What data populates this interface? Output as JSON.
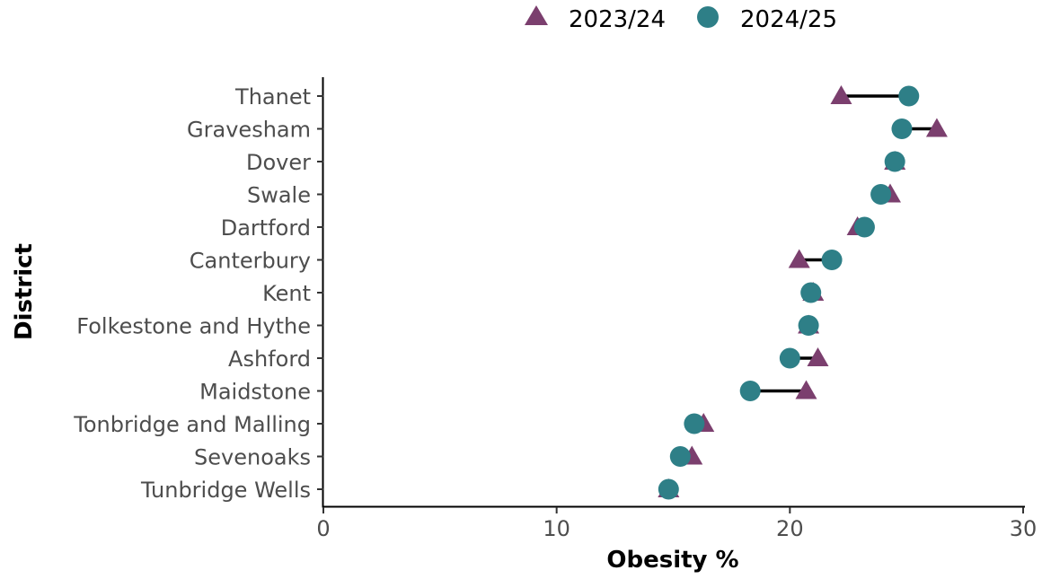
{
  "chart_data": {
    "type": "dumbbell",
    "title": "",
    "xlabel": "Obesity %",
    "ylabel": "District",
    "xlim": [
      0,
      30
    ],
    "xticks": [
      0,
      10,
      20,
      30
    ],
    "grid": false,
    "legend_position": "top",
    "categories": [
      "Thanet",
      "Gravesham",
      "Dover",
      "Swale",
      "Dartford",
      "Canterbury",
      "Kent",
      "Folkestone and Hythe",
      "Ashford",
      "Maidstone",
      "Tonbridge and Malling",
      "Sevenoaks",
      "Tunbridge Wells"
    ],
    "series": [
      {
        "name": "2023/24",
        "marker": "triangle",
        "color": "#7b3f6e",
        "values": [
          22.2,
          26.3,
          24.5,
          24.3,
          22.9,
          20.4,
          21.0,
          20.8,
          21.2,
          20.7,
          16.3,
          15.8,
          14.8
        ]
      },
      {
        "name": "2024/25",
        "marker": "circle",
        "color": "#2e7f87",
        "values": [
          25.1,
          24.8,
          24.5,
          23.9,
          23.2,
          21.8,
          20.9,
          20.8,
          20.0,
          18.3,
          15.9,
          15.3,
          14.8
        ]
      }
    ],
    "connector_color": "#000000"
  }
}
